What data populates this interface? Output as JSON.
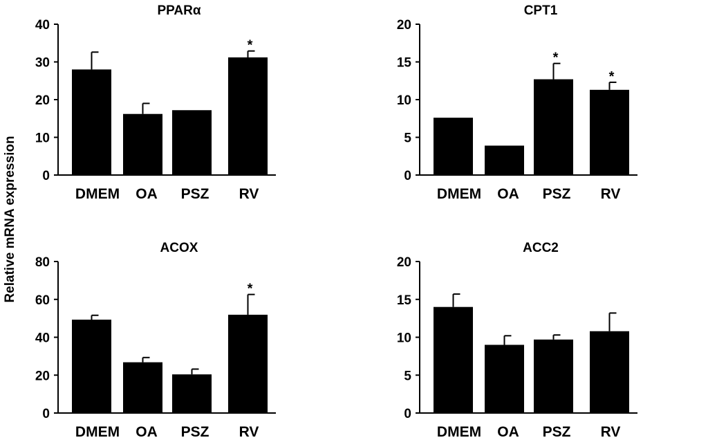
{
  "figure": {
    "ylabel": "Relative mRNA expression"
  },
  "chart_data": [
    {
      "type": "bar",
      "title": "PPARα",
      "categories": [
        "DMEM",
        "OA",
        "PSZ",
        "RV"
      ],
      "values": [
        28,
        16.2,
        17.2,
        31.2
      ],
      "errors": [
        4.6,
        2.8,
        0,
        1.7
      ],
      "significant": [
        "",
        "",
        "",
        "*"
      ],
      "ylim": [
        0,
        40
      ],
      "yticks": [
        0,
        10,
        20,
        30,
        40
      ],
      "xlabel": "",
      "ylabel": "Relative mRNA expression",
      "grid": false
    },
    {
      "type": "bar",
      "title": "CPT1",
      "categories": [
        "DMEM",
        "OA",
        "PSZ",
        "RV"
      ],
      "values": [
        7.6,
        3.9,
        12.7,
        11.3
      ],
      "errors": [
        0,
        0,
        2.1,
        1
      ],
      "significant": [
        "",
        "",
        "*",
        "*"
      ],
      "ylim": [
        0,
        20
      ],
      "yticks": [
        0,
        5,
        10,
        15,
        20
      ],
      "xlabel": "",
      "ylabel": "Relative mRNA expression",
      "grid": false
    },
    {
      "type": "bar",
      "title": "ACOX",
      "categories": [
        "DMEM",
        "OA",
        "PSZ",
        "RV"
      ],
      "values": [
        49.3,
        26.8,
        20.4,
        51.9
      ],
      "errors": [
        2.3,
        2.5,
        2.8,
        10.7
      ],
      "significant": [
        "",
        "",
        "",
        "*"
      ],
      "ylim": [
        0,
        80
      ],
      "yticks": [
        0,
        20,
        40,
        60,
        80
      ],
      "xlabel": "",
      "ylabel": "Relative mRNA expression",
      "grid": false
    },
    {
      "type": "bar",
      "title": "ACC2",
      "categories": [
        "DMEM",
        "OA",
        "PSZ",
        "RV"
      ],
      "values": [
        14,
        9,
        9.7,
        10.8
      ],
      "errors": [
        1.7,
        1.2,
        0.6,
        2.4
      ],
      "significant": [
        "",
        "",
        "",
        ""
      ],
      "ylim": [
        0,
        20
      ],
      "yticks": [
        0,
        5,
        10,
        15,
        20
      ],
      "xlabel": "",
      "ylabel": "Relative mRNA expression",
      "grid": false
    }
  ]
}
